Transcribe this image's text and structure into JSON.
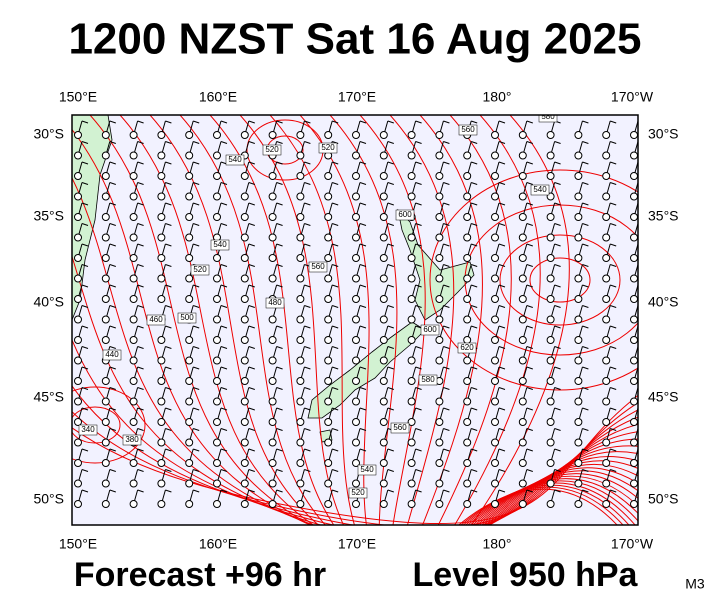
{
  "title": "1200 NZST Sat 16 Aug 2025",
  "footer": {
    "forecast": "Forecast +96 hr",
    "level": "Level 950 hPa",
    "code": "M3"
  },
  "axes": {
    "top": [
      "150°E",
      "160°E",
      "170°E",
      "180°",
      "170°W"
    ],
    "bottom": [
      "150°E",
      "160°E",
      "170°E",
      "180°",
      "170°W"
    ],
    "left": [
      "30°S",
      "35°S",
      "40°S",
      "45°S",
      "50°S"
    ],
    "right": [
      "30°S",
      "35°S",
      "40°S",
      "45°S",
      "50°S"
    ]
  },
  "contour_labels": [
    "520",
    "540",
    "520",
    "560",
    "580",
    "600",
    "540",
    "520",
    "560",
    "500",
    "460",
    "480",
    "440",
    "340",
    "380",
    "600",
    "620",
    "580",
    "560",
    "540",
    "520",
    "540"
  ]
}
